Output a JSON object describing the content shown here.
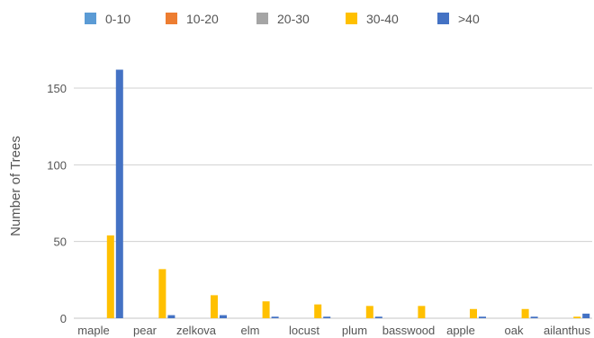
{
  "chart_data": {
    "type": "bar",
    "title": "",
    "xlabel": "",
    "ylabel": "Number of Trees",
    "ylim": [
      0,
      165
    ],
    "yticks": [
      0,
      50,
      100,
      150
    ],
    "grid": true,
    "legend_position": "top-left",
    "categories": [
      "maple",
      "pear",
      "zelkova",
      "elm",
      "locust",
      "plum",
      "basswood",
      "apple",
      "oak",
      "ailanthus"
    ],
    "series": [
      {
        "name": "0-10",
        "color": "#5B9BD5",
        "values": [
          0,
          0,
          0,
          0,
          0,
          0,
          0,
          0,
          0,
          0
        ]
      },
      {
        "name": "10-20",
        "color": "#ED7D31",
        "values": [
          0,
          0,
          0,
          0,
          0,
          0,
          0,
          0,
          0,
          0
        ]
      },
      {
        "name": "20-30",
        "color": "#A5A5A5",
        "values": [
          0,
          0,
          0,
          0,
          0,
          0,
          0,
          0,
          0,
          0
        ]
      },
      {
        "name": "30-40",
        "color": "#FFC000",
        "values": [
          54,
          32,
          15,
          11,
          9,
          8,
          8,
          6,
          6,
          1
        ]
      },
      {
        "name": ">40",
        "color": "#4472C4",
        "values": [
          162,
          2,
          2,
          1,
          1,
          1,
          0,
          1,
          1,
          3
        ]
      }
    ]
  }
}
